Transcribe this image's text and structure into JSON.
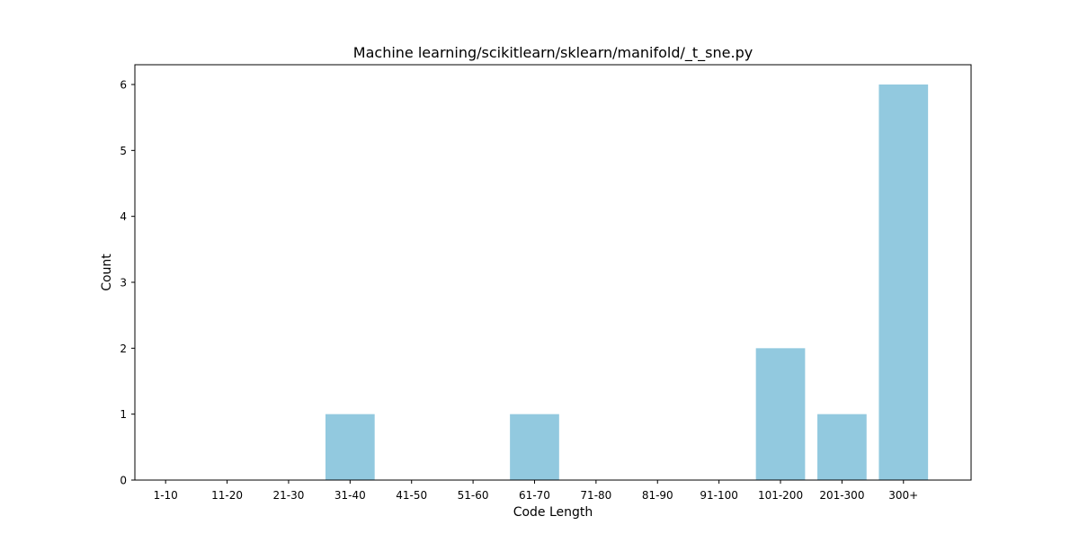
{
  "chart_data": {
    "type": "bar",
    "title": "Machine learning/scikitlearn/sklearn/manifold/_t_sne.py",
    "xlabel": "Code Length",
    "ylabel": "Count",
    "categories": [
      "1-10",
      "11-20",
      "21-30",
      "31-40",
      "41-50",
      "51-60",
      "61-70",
      "71-80",
      "81-90",
      "91-100",
      "101-200",
      "201-300",
      "300+"
    ],
    "values": [
      0,
      0,
      0,
      1,
      0,
      0,
      1,
      0,
      0,
      0,
      2,
      1,
      6
    ],
    "ylim": [
      0,
      6.3
    ],
    "yticks": [
      0,
      1,
      2,
      3,
      4,
      5,
      6
    ],
    "grid": false,
    "legend": "none",
    "colors": {
      "bar": "#92c9df",
      "axis": "#000000",
      "background": "#ffffff"
    }
  }
}
